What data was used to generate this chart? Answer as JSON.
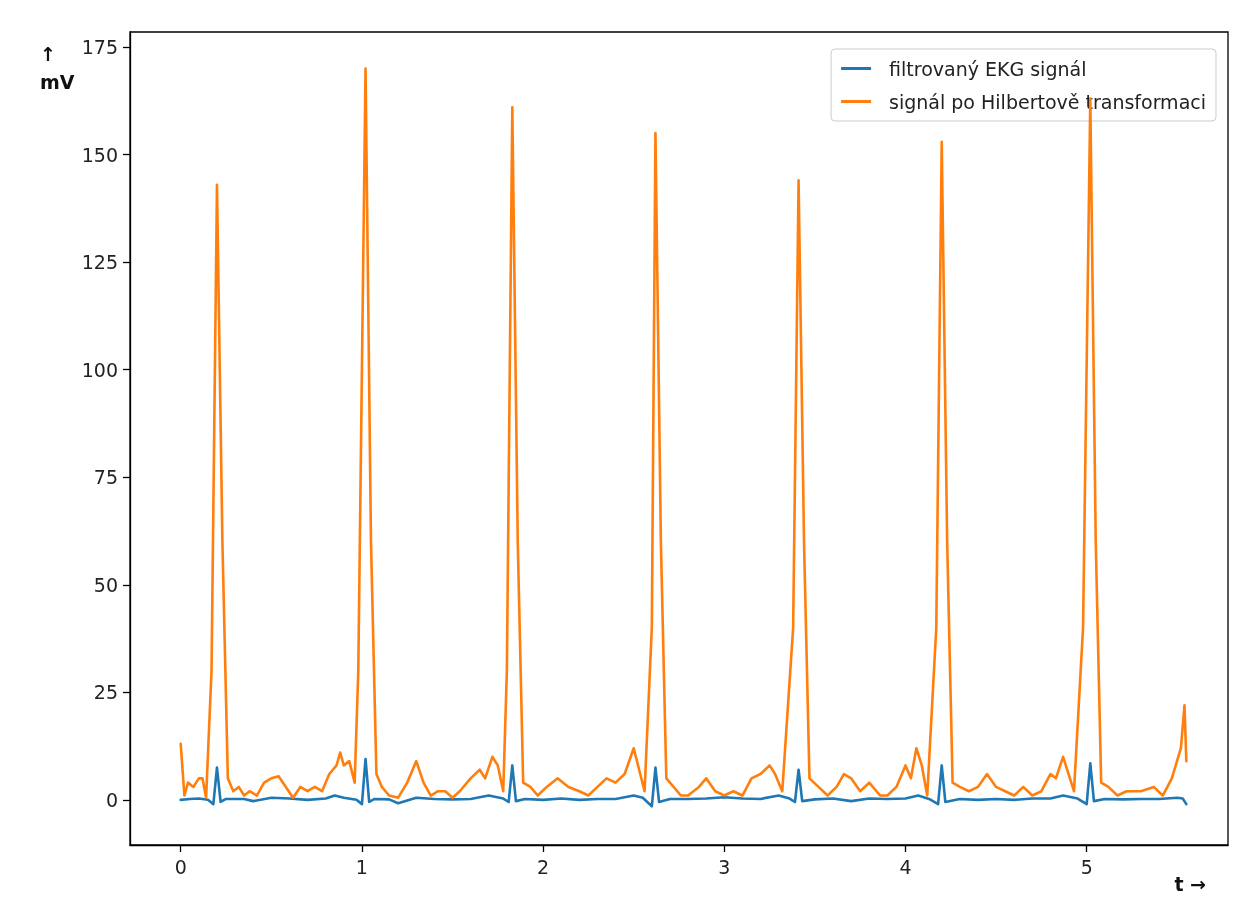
{
  "chart_data": {
    "type": "line",
    "xlabel": "t →",
    "ylabel": "↑\nmV",
    "xlim": [
      -0.28,
      5.78
    ],
    "ylim": [
      -10.5,
      178.5
    ],
    "xticks": [
      0,
      1,
      2,
      3,
      4,
      5
    ],
    "yticks": [
      0,
      25,
      50,
      75,
      100,
      125,
      150,
      175
    ],
    "grid": false,
    "legend": "top right",
    "marker": "none",
    "line_style": "solid",
    "series": [
      {
        "name": "filtrovaný EKG signál",
        "color": "#1f77b4",
        "x": [
          0,
          0.05,
          0.1,
          0.15,
          0.18,
          0.2,
          0.22,
          0.25,
          0.35,
          0.4,
          0.5,
          0.6,
          0.7,
          0.8,
          0.85,
          0.9,
          0.97,
          1.0,
          1.02,
          1.04,
          1.07,
          1.15,
          1.2,
          1.3,
          1.4,
          1.5,
          1.6,
          1.7,
          1.78,
          1.81,
          1.83,
          1.85,
          1.9,
          2.0,
          2.1,
          2.2,
          2.3,
          2.4,
          2.5,
          2.55,
          2.6,
          2.62,
          2.64,
          2.7,
          2.8,
          2.9,
          3.0,
          3.1,
          3.2,
          3.3,
          3.36,
          3.39,
          3.41,
          3.43,
          3.5,
          3.6,
          3.7,
          3.8,
          3.9,
          4.0,
          4.07,
          4.13,
          4.18,
          4.2,
          4.22,
          4.3,
          4.4,
          4.5,
          4.6,
          4.7,
          4.8,
          4.87,
          4.95,
          5.0,
          5.02,
          5.04,
          5.1,
          5.2,
          5.3,
          5.4,
          5.5,
          5.53,
          5.55
        ],
        "values": [
          0,
          0.2,
          0.3,
          0,
          -1,
          7.5,
          -0.5,
          0.2,
          0.2,
          -0.3,
          0.5,
          0.3,
          0,
          0.3,
          1,
          0.5,
          0,
          -1,
          9.5,
          -0.5,
          0.2,
          0.1,
          -0.8,
          0.5,
          0.2,
          0.1,
          0.2,
          1,
          0.3,
          -0.5,
          8,
          -0.3,
          0.2,
          0,
          0.3,
          0,
          0.2,
          0.2,
          1,
          0.5,
          -1.5,
          7.5,
          -0.5,
          0.2,
          0.2,
          0.3,
          0.6,
          0.3,
          0.2,
          1,
          0.3,
          -0.5,
          7,
          -0.3,
          0.1,
          0.3,
          -0.3,
          0.3,
          0.2,
          0.3,
          1,
          0.2,
          -1,
          8,
          -0.5,
          0.2,
          0,
          0.2,
          0,
          0.3,
          0.3,
          1,
          0.3,
          -1,
          8.5,
          -0.3,
          0.2,
          0.1,
          0.2,
          0.2,
          0.5,
          0.3,
          -1
        ]
      },
      {
        "name": "signál po Hilbertově transformaci",
        "color": "#ff7f0e",
        "x": [
          0,
          0.02,
          0.04,
          0.07,
          0.1,
          0.12,
          0.14,
          0.17,
          0.2,
          0.23,
          0.26,
          0.29,
          0.32,
          0.35,
          0.38,
          0.42,
          0.46,
          0.5,
          0.54,
          0.58,
          0.62,
          0.66,
          0.7,
          0.74,
          0.78,
          0.82,
          0.86,
          0.88,
          0.9,
          0.93,
          0.96,
          0.98,
          1.02,
          1.05,
          1.08,
          1.11,
          1.15,
          1.2,
          1.25,
          1.3,
          1.34,
          1.38,
          1.42,
          1.46,
          1.5,
          1.54,
          1.6,
          1.65,
          1.68,
          1.72,
          1.75,
          1.78,
          1.8,
          1.83,
          1.86,
          1.89,
          1.93,
          1.97,
          2.02,
          2.08,
          2.14,
          2.2,
          2.25,
          2.3,
          2.35,
          2.4,
          2.45,
          2.5,
          2.53,
          2.56,
          2.6,
          2.62,
          2.65,
          2.68,
          2.72,
          2.76,
          2.8,
          2.86,
          2.9,
          2.95,
          3.0,
          3.05,
          3.1,
          3.15,
          3.2,
          3.25,
          3.28,
          3.32,
          3.38,
          3.41,
          3.44,
          3.47,
          3.52,
          3.57,
          3.62,
          3.66,
          3.7,
          3.75,
          3.8,
          3.86,
          3.9,
          3.95,
          4.0,
          4.03,
          4.06,
          4.09,
          4.12,
          4.17,
          4.2,
          4.23,
          4.26,
          4.3,
          4.35,
          4.4,
          4.45,
          4.5,
          4.55,
          4.6,
          4.65,
          4.7,
          4.75,
          4.8,
          4.83,
          4.87,
          4.9,
          4.93,
          4.98,
          5.02,
          5.05,
          5.08,
          5.12,
          5.17,
          5.22,
          5.3,
          5.37,
          5.42,
          5.47,
          5.52,
          5.54,
          5.55
        ],
        "values": [
          13,
          1,
          4,
          3,
          5,
          5,
          0.5,
          30,
          143,
          60,
          5,
          2,
          3,
          1,
          2,
          1,
          4,
          5,
          5.5,
          3,
          0.5,
          3,
          2,
          3,
          2,
          6,
          8,
          11,
          8,
          9,
          4,
          30,
          170,
          60,
          6,
          3,
          1,
          0.5,
          4,
          9,
          4,
          1,
          2,
          2,
          0.5,
          2,
          5,
          7,
          5,
          10,
          8,
          2,
          30,
          161,
          60,
          4,
          3,
          1,
          3,
          5,
          3,
          2,
          1,
          3,
          5,
          4,
          6,
          12,
          7,
          2,
          40,
          155,
          60,
          5,
          3,
          1,
          1,
          3,
          5,
          2,
          1,
          2,
          1,
          5,
          6,
          8,
          6,
          2,
          40,
          144,
          60,
          5,
          3,
          1,
          3,
          6,
          5,
          2,
          4,
          1,
          1,
          3,
          8,
          5,
          12,
          8,
          1,
          40,
          153,
          60,
          4,
          3,
          2,
          3,
          6,
          3,
          2,
          1,
          3,
          1,
          2,
          6,
          5,
          10,
          6,
          2,
          40,
          163,
          60,
          4,
          3,
          1,
          2,
          2,
          3,
          1,
          5,
          12,
          22,
          9
        ]
      }
    ]
  }
}
